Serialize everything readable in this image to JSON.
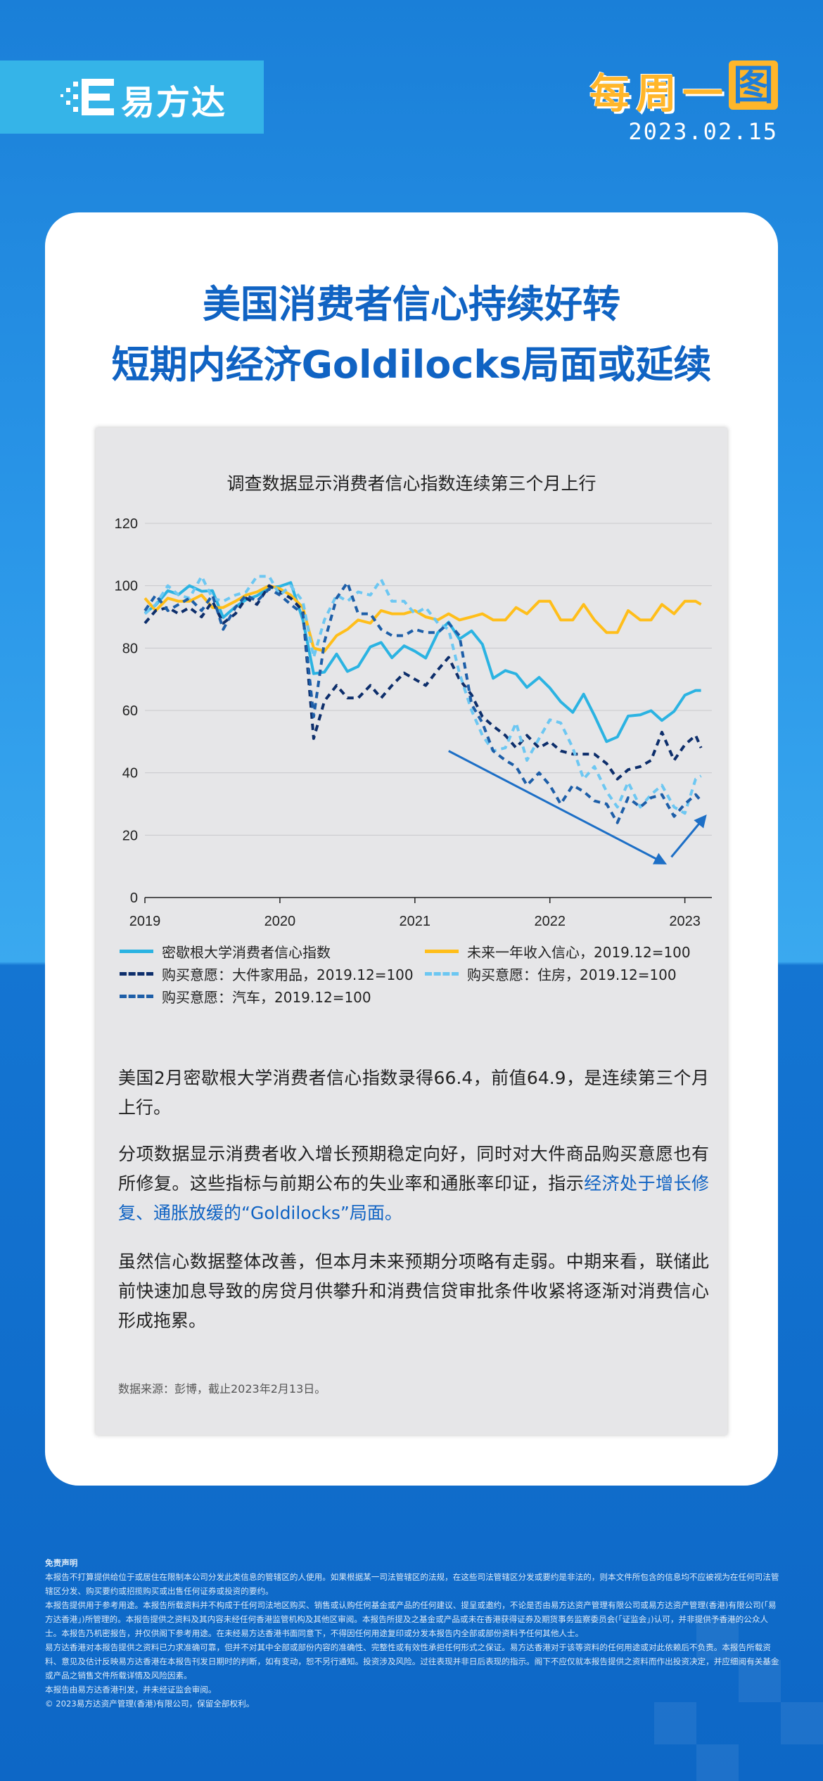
{
  "brand": {
    "name": "易方达"
  },
  "badge": {
    "chars": [
      "每",
      "周",
      "一",
      "图"
    ]
  },
  "date": "2023.02.15",
  "headline": {
    "line1": "美国消费者信心持续好转",
    "line2": "短期内经济Goldilocks局面或延续"
  },
  "chart_data": {
    "type": "line",
    "title": "调查数据显示消费者信心指数连续第三个月上行",
    "ylim": [
      0,
      120
    ],
    "yticks": [
      0,
      20,
      40,
      60,
      80,
      100,
      120
    ],
    "xlim": [
      2019,
      2023.2
    ],
    "xticks": [
      2019,
      2020,
      2021,
      2022,
      2023
    ],
    "grid": true,
    "legend_position": "bottom",
    "annotations": [
      {
        "type": "arrow",
        "from": [
          2021.25,
          47
        ],
        "to": [
          2022.85,
          11
        ]
      },
      {
        "type": "arrow",
        "from": [
          2022.9,
          13
        ],
        "to": [
          2023.15,
          26
        ]
      }
    ],
    "series": [
      {
        "name": "密歇根大学消费者信心指数",
        "color": "#2bb3e2",
        "style": "solid",
        "x": [
          2019.0,
          2019.08,
          2019.17,
          2019.25,
          2019.33,
          2019.42,
          2019.5,
          2019.58,
          2019.67,
          2019.75,
          2019.83,
          2019.92,
          2020.0,
          2020.08,
          2020.17,
          2020.25,
          2020.33,
          2020.42,
          2020.5,
          2020.58,
          2020.67,
          2020.75,
          2020.83,
          2020.92,
          2021.0,
          2021.08,
          2021.17,
          2021.25,
          2021.33,
          2021.42,
          2021.5,
          2021.58,
          2021.67,
          2021.75,
          2021.83,
          2021.92,
          2022.0,
          2022.08,
          2022.17,
          2022.25,
          2022.33,
          2022.42,
          2022.5,
          2022.58,
          2022.67,
          2022.75,
          2022.83,
          2022.92,
          2023.0,
          2023.08,
          2023.12
        ],
        "values": [
          91.2,
          93.8,
          98.4,
          97.2,
          100.0,
          98.2,
          98.4,
          89.8,
          93.2,
          95.5,
          96.8,
          99.3,
          99.8,
          101.0,
          89.1,
          71.8,
          72.3,
          78.1,
          72.5,
          74.1,
          80.4,
          81.8,
          76.9,
          80.7,
          79.0,
          76.8,
          84.9,
          88.3,
          82.9,
          85.5,
          81.2,
          70.3,
          72.8,
          71.7,
          67.4,
          70.6,
          67.2,
          62.8,
          59.4,
          65.2,
          58.4,
          50.0,
          51.5,
          58.2,
          58.6,
          59.9,
          56.8,
          59.7,
          64.9,
          66.4,
          66.4
        ]
      },
      {
        "name": "未来一年收入信心，2019.12=100",
        "color": "#ffbe1a",
        "style": "solid",
        "x": [
          2019.0,
          2019.08,
          2019.17,
          2019.25,
          2019.33,
          2019.42,
          2019.5,
          2019.58,
          2019.67,
          2019.75,
          2019.83,
          2019.92,
          2020.0,
          2020.08,
          2020.17,
          2020.25,
          2020.33,
          2020.42,
          2020.5,
          2020.58,
          2020.67,
          2020.75,
          2020.83,
          2020.92,
          2021.0,
          2021.08,
          2021.17,
          2021.25,
          2021.33,
          2021.42,
          2021.5,
          2021.58,
          2021.67,
          2021.75,
          2021.83,
          2021.92,
          2022.0,
          2022.08,
          2022.17,
          2022.25,
          2022.33,
          2022.42,
          2022.5,
          2022.58,
          2022.67,
          2022.75,
          2022.83,
          2022.92,
          2023.0,
          2023.08,
          2023.12
        ],
        "values": [
          96,
          92,
          96,
          95,
          95,
          97,
          93,
          93,
          95,
          97,
          98,
          100,
          99,
          97,
          93,
          80,
          79,
          84,
          86,
          89,
          88,
          92,
          91,
          91,
          92,
          90,
          89,
          91,
          89,
          90,
          91,
          89,
          89,
          93,
          91,
          95,
          95,
          89,
          89,
          94,
          89,
          85,
          85,
          92,
          89,
          89,
          94,
          91,
          95,
          95,
          94
        ]
      },
      {
        "name": "购买意愿：大件家用品，2019.12=100",
        "color": "#0d2e6b",
        "style": "dash",
        "x": [
          2019.0,
          2019.08,
          2019.17,
          2019.25,
          2019.33,
          2019.42,
          2019.5,
          2019.58,
          2019.67,
          2019.75,
          2019.83,
          2019.92,
          2020.0,
          2020.08,
          2020.17,
          2020.25,
          2020.33,
          2020.42,
          2020.5,
          2020.58,
          2020.67,
          2020.75,
          2020.83,
          2020.92,
          2021.0,
          2021.08,
          2021.17,
          2021.25,
          2021.33,
          2021.42,
          2021.5,
          2021.58,
          2021.67,
          2021.75,
          2021.83,
          2021.92,
          2022.0,
          2022.08,
          2022.17,
          2022.25,
          2022.33,
          2022.42,
          2022.5,
          2022.58,
          2022.67,
          2022.75,
          2022.83,
          2022.92,
          2023.0,
          2023.08,
          2023.12
        ],
        "values": [
          88,
          92,
          93,
          91,
          93,
          90,
          95,
          88,
          91,
          96,
          94,
          100,
          98,
          96,
          92,
          51,
          63,
          68,
          64,
          64,
          68,
          64,
          68,
          72,
          70,
          68,
          73,
          77,
          70,
          65,
          58,
          55,
          52,
          48,
          52,
          48,
          50,
          47,
          46,
          46,
          46,
          43,
          38,
          41,
          42,
          44,
          53,
          44,
          49,
          52,
          48
        ]
      },
      {
        "name": "购买意愿：住房，2019.12=100",
        "color": "#6cc7f2",
        "style": "dash",
        "x": [
          2019.0,
          2019.08,
          2019.17,
          2019.25,
          2019.33,
          2019.42,
          2019.5,
          2019.58,
          2019.67,
          2019.75,
          2019.83,
          2019.92,
          2020.0,
          2020.08,
          2020.17,
          2020.25,
          2020.33,
          2020.42,
          2020.5,
          2020.58,
          2020.67,
          2020.75,
          2020.83,
          2020.92,
          2021.0,
          2021.08,
          2021.17,
          2021.25,
          2021.33,
          2021.42,
          2021.5,
          2021.58,
          2021.67,
          2021.75,
          2021.83,
          2021.92,
          2022.0,
          2022.08,
          2022.17,
          2022.25,
          2022.33,
          2022.42,
          2022.5,
          2022.58,
          2022.67,
          2022.75,
          2022.83,
          2022.92,
          2023.0,
          2023.08,
          2023.12
        ],
        "values": [
          91,
          94,
          100,
          97,
          96,
          103,
          96,
          95,
          97,
          98,
          103,
          103,
          97,
          100,
          95,
          77,
          89,
          97,
          95,
          98,
          97,
          102,
          95,
          95,
          91,
          93,
          88,
          86,
          72,
          60,
          52,
          47,
          48,
          56,
          44,
          51,
          57,
          56,
          48,
          38,
          42,
          34,
          29,
          37,
          29,
          33,
          36,
          29,
          27,
          38,
          39
        ]
      },
      {
        "name": "购买意愿：汽车，2019.12=100",
        "color": "#1d5ea8",
        "style": "dash",
        "x": [
          2019.0,
          2019.08,
          2019.17,
          2019.25,
          2019.33,
          2019.42,
          2019.5,
          2019.58,
          2019.67,
          2019.75,
          2019.83,
          2019.92,
          2020.0,
          2020.08,
          2020.17,
          2020.25,
          2020.33,
          2020.42,
          2020.5,
          2020.58,
          2020.67,
          2020.75,
          2020.83,
          2020.92,
          2021.0,
          2021.08,
          2021.17,
          2021.25,
          2021.33,
          2021.42,
          2021.5,
          2021.58,
          2021.67,
          2021.75,
          2021.83,
          2021.92,
          2022.0,
          2022.08,
          2022.17,
          2022.25,
          2022.33,
          2022.42,
          2022.5,
          2022.58,
          2022.67,
          2022.75,
          2022.83,
          2022.92,
          2023.0,
          2023.08,
          2023.12
        ],
        "values": [
          92,
          97,
          92,
          94,
          96,
          92,
          97,
          86,
          93,
          97,
          95,
          99,
          97,
          94,
          91,
          58,
          82,
          96,
          101,
          91,
          91,
          86,
          84,
          84,
          86,
          85,
          85,
          88,
          84,
          62,
          56,
          47,
          44,
          42,
          36,
          40,
          36,
          30,
          36,
          34,
          31,
          30,
          24,
          32,
          29,
          32,
          33,
          26,
          30,
          33,
          31
        ]
      }
    ]
  },
  "legend": [
    {
      "label": "密歇根大学消费者信心指数",
      "color": "#2bb3e2",
      "style": "solid"
    },
    {
      "label": "未来一年收入信心，2019.12=100",
      "color": "#ffbe1a",
      "style": "solid"
    },
    {
      "label": "购买意愿：大件家用品，2019.12=100",
      "color": "#0d2e6b",
      "style": "dash"
    },
    {
      "label": "购买意愿：住房，2019.12=100",
      "color": "#6cc7f2",
      "style": "dash"
    },
    {
      "label": "购买意愿：汽车，2019.12=100",
      "color": "#1d5ea8",
      "style": "dash"
    }
  ],
  "body": {
    "p1": "美国2月密歇根大学消费者信心指数录得66.4，前值64.9，是连续第三个月上行。",
    "p2_a": "分项数据显示消费者收入增长预期稳定向好，同时对大件商品购买意愿也有所修复。这些指标与前期公布的失业率和通胀率印证，指示",
    "p2_b": "经济处于增长修复、通胀放缓的“Goldilocks”局面。",
    "p3": "虽然信心数据整体改善，但本月未来预期分项略有走弱。中期来看，联储此前快速加息导致的房贷月供攀升和消费信贷审批条件收紧将逐渐对消费信心形成拖累。",
    "source": "数据来源：彭博，截止2023年2月13日。"
  },
  "disclaimer": {
    "title": "免责声明",
    "lines": [
      "本报告不打算提供给位于或居住在限制本公司分发此类信息的管辖区的人使用。如果根据某一司法管辖区的法规，在这些司法管辖区分发或要约是非法的，则本文件所包含的信息均不应被视为在任何司法管辖区分发、购买要约或招揽购买或出售任何证券或投资的要约。",
      "本报告提供用于参考用途。本报告所载资料并不构成于任何司法地区购买、销售或认购任何基金或产品的任何建议、提呈或邀约，不论是否由易方达资产管理有限公司或易方达资产管理(香港)有限公司(「易方达香港」)所管理的。本报告提供之资料及其内容未经任何香港监管机构及其他区审阅。本报告所提及之基金或产品或未在香港获得证券及期货事务监察委员会(「证监会」)认可，并非提供予香港的公众人士。本报告乃机密报告，并仅供阁下参考用途。在未经易方达香港书面同意下，不得因任何用途复印或分发本报告内全部或部份资料予任何其他人士。",
      "易方达香港对本报告提供之资料已力求准确可靠，但并不对其中全部或部份内容的准确性、完整性或有效性承担任何形式之保证。易方达香港对于该等资料的任何用途或对此依赖后不负责。本报告所载资料、意见及估计反映易方达香港在本报告刊发日期时的判断，如有变动，恕不另行通知。投资涉及风险。过往表现并非日后表现的指示。阁下不应仅就本报告提供之资料而作出投资决定，并应细阅有关基金或产品之销售文件所载详情及风险因素。",
      "本报告由易方达香港刊发，并未经证监会审阅。",
      "© 2023易方达资产管理(香港)有限公司，保留全部权利。"
    ]
  }
}
